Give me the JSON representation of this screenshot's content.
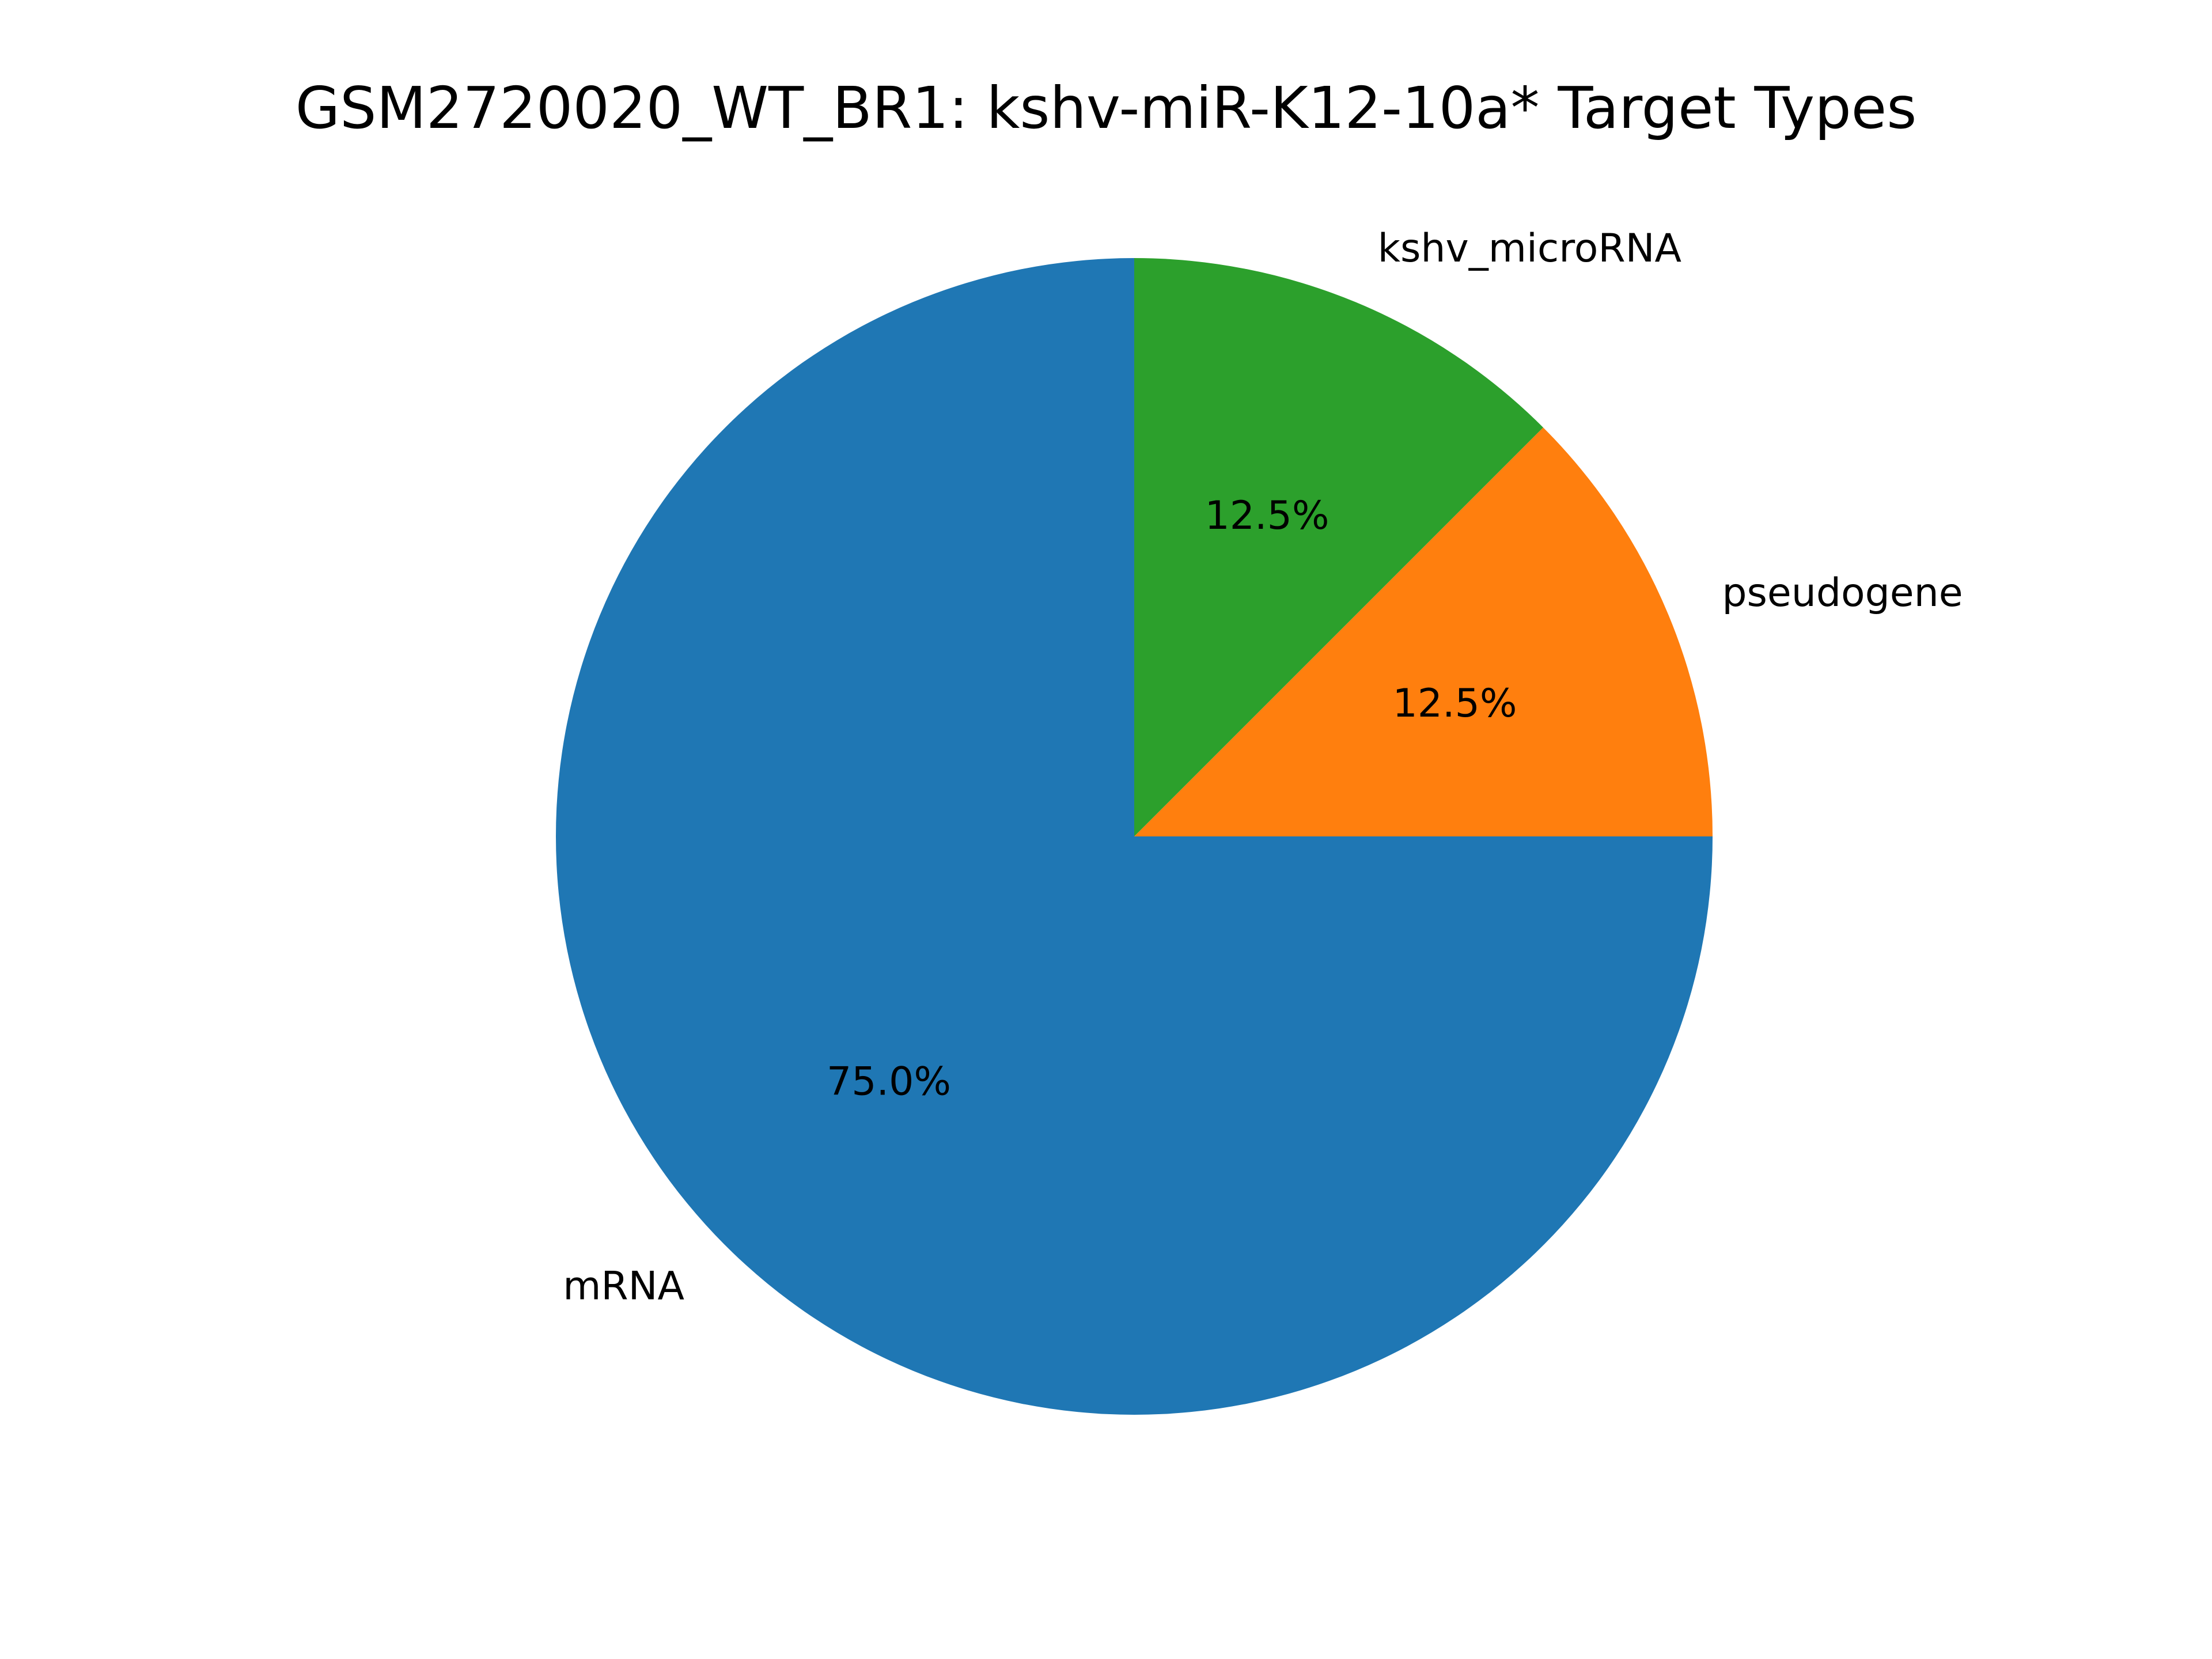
{
  "chart_data": {
    "type": "pie",
    "title": "GSM2720020_WT_BR1: kshv-miR-K12-10a* Target Types",
    "slices": [
      {
        "label": "mRNA",
        "percent_label": "75.0%",
        "value": 75.0,
        "color": "#1f77b4"
      },
      {
        "label": "pseudogene",
        "percent_label": "12.5%",
        "value": 12.5,
        "color": "#ff7f0e"
      },
      {
        "label": "kshv_microRNA",
        "percent_label": "12.5%",
        "value": 12.5,
        "color": "#2ca02c"
      }
    ],
    "start_angle_deg": 90,
    "direction": "counterclockwise",
    "legend": "none"
  }
}
